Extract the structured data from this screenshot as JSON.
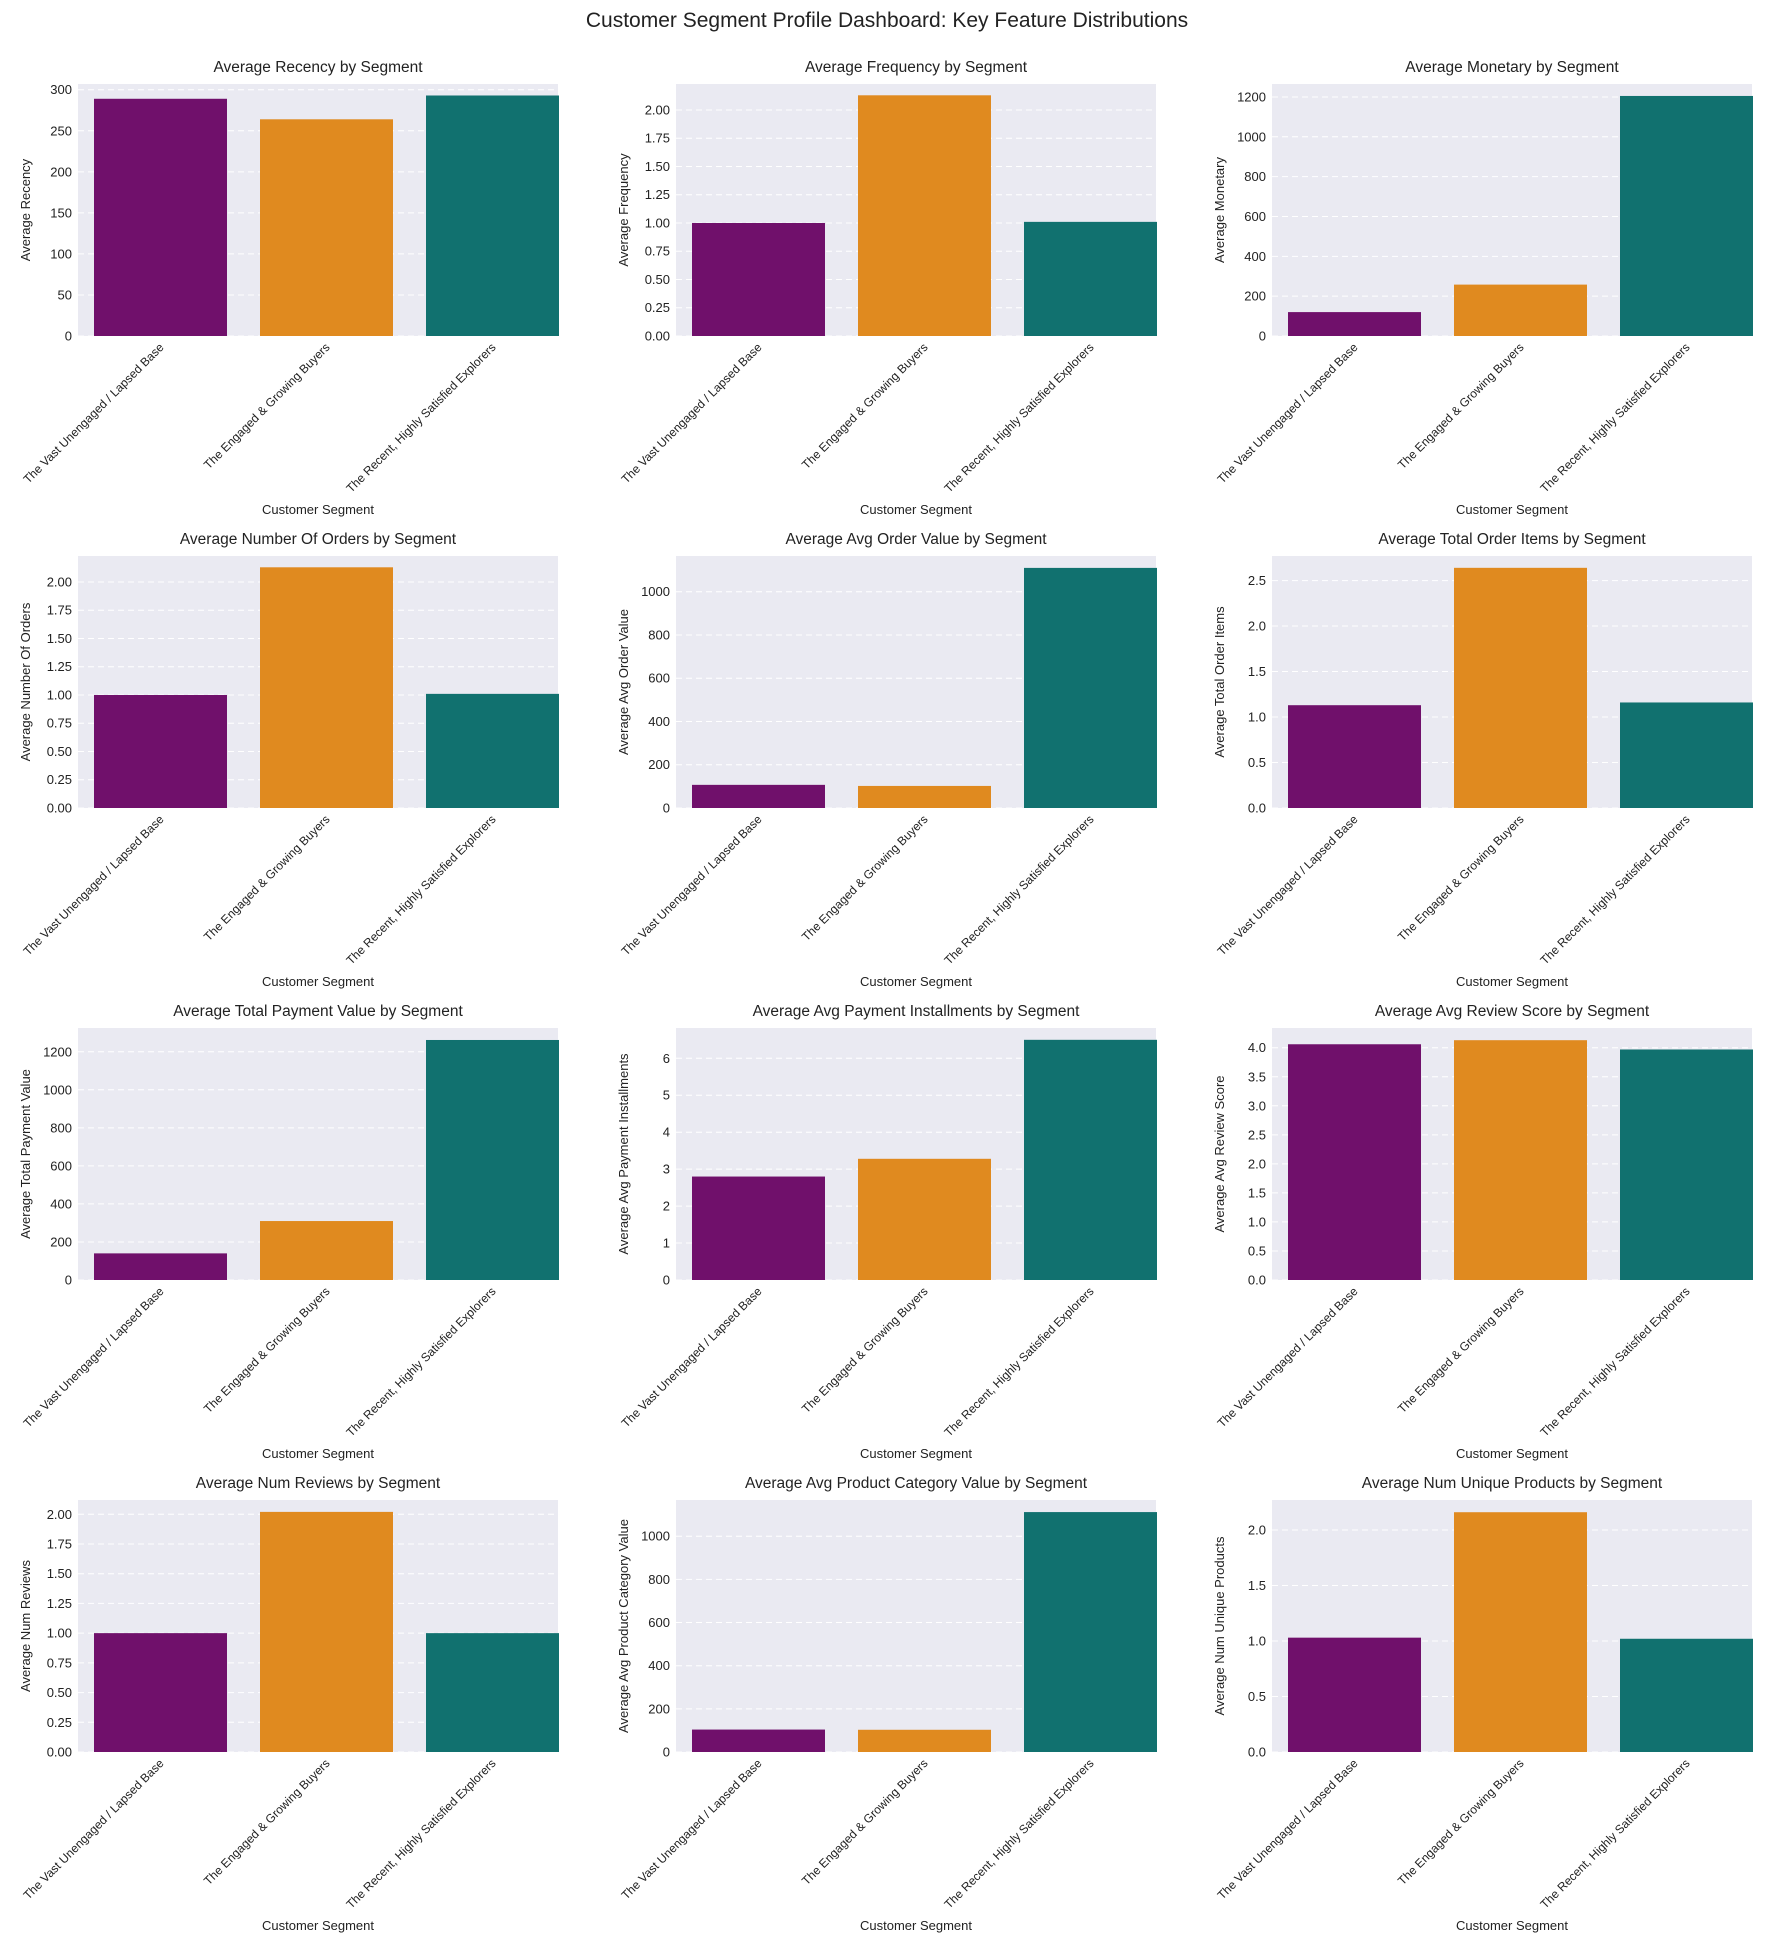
{
  "dashboard_title": "Customer Segment Profile Dashboard: Key Feature Distributions",
  "colors": {
    "panel_bg": "#EAEAF2",
    "grid": "#FFFFFF",
    "text": "#222222"
  },
  "chart_data": [
    {
      "type": "bar",
      "title": "Average Recency by Segment",
      "xlabel": "Customer Segment",
      "ylabel": "Average Recency",
      "categories": [
        "The Vast Unengaged / Lapsed Base",
        "The Engaged & Growing Buyers",
        "The Recent, Highly Satisfied Explorers"
      ],
      "values": [
        289,
        264,
        293
      ],
      "colors": [
        "#70106B",
        "#E08A1F",
        "#11716F"
      ],
      "ylim": [
        0,
        307
      ],
      "yticks": [
        0,
        50,
        100,
        150,
        200,
        250,
        300
      ],
      "ytick_labels": [
        "0",
        "50",
        "100",
        "150",
        "200",
        "250",
        "300"
      ]
    },
    {
      "type": "bar",
      "title": "Average Frequency by Segment",
      "xlabel": "Customer Segment",
      "ylabel": "Average Frequency",
      "categories": [
        "The Vast Unengaged / Lapsed Base",
        "The Engaged & Growing Buyers",
        "The Recent, Highly Satisfied Explorers"
      ],
      "values": [
        1.0,
        2.13,
        1.01
      ],
      "colors": [
        "#70106B",
        "#E08A1F",
        "#11716F"
      ],
      "ylim": [
        0,
        2.23
      ],
      "yticks": [
        0,
        0.25,
        0.5,
        0.75,
        1.0,
        1.25,
        1.5,
        1.75,
        2.0
      ],
      "ytick_labels": [
        "0.00",
        "0.25",
        "0.50",
        "0.75",
        "1.00",
        "1.25",
        "1.50",
        "1.75",
        "2.00"
      ]
    },
    {
      "type": "bar",
      "title": "Average Monetary by Segment",
      "xlabel": "Customer Segment",
      "ylabel": "Average Monetary",
      "categories": [
        "The Vast Unengaged / Lapsed Base",
        "The Engaged & Growing Buyers",
        "The Recent, Highly Satisfied Explorers"
      ],
      "values": [
        120,
        258,
        1205
      ],
      "colors": [
        "#70106B",
        "#E08A1F",
        "#11716F"
      ],
      "ylim": [
        0,
        1265
      ],
      "yticks": [
        0,
        200,
        400,
        600,
        800,
        1000,
        1200
      ],
      "ytick_labels": [
        "0",
        "200",
        "400",
        "600",
        "800",
        "1000",
        "1200"
      ]
    },
    {
      "type": "bar",
      "title": "Average Number Of Orders by Segment",
      "xlabel": "Customer Segment",
      "ylabel": "Average Number Of Orders",
      "categories": [
        "The Vast Unengaged / Lapsed Base",
        "The Engaged & Growing Buyers",
        "The Recent, Highly Satisfied Explorers"
      ],
      "values": [
        1.0,
        2.13,
        1.01
      ],
      "colors": [
        "#70106B",
        "#E08A1F",
        "#11716F"
      ],
      "ylim": [
        0,
        2.23
      ],
      "yticks": [
        0,
        0.25,
        0.5,
        0.75,
        1.0,
        1.25,
        1.5,
        1.75,
        2.0
      ],
      "ytick_labels": [
        "0.00",
        "0.25",
        "0.50",
        "0.75",
        "1.00",
        "1.25",
        "1.50",
        "1.75",
        "2.00"
      ]
    },
    {
      "type": "bar",
      "title": "Average Avg Order Value by Segment",
      "xlabel": "Customer Segment",
      "ylabel": "Average Avg Order Value",
      "categories": [
        "The Vast Unengaged / Lapsed Base",
        "The Engaged & Growing Buyers",
        "The Recent, Highly Satisfied Explorers"
      ],
      "values": [
        107,
        102,
        1110
      ],
      "colors": [
        "#70106B",
        "#E08A1F",
        "#11716F"
      ],
      "ylim": [
        0,
        1165
      ],
      "yticks": [
        0,
        200,
        400,
        600,
        800,
        1000
      ],
      "ytick_labels": [
        "0",
        "200",
        "400",
        "600",
        "800",
        "1000"
      ]
    },
    {
      "type": "bar",
      "title": "Average Total Order Items by Segment",
      "xlabel": "Customer Segment",
      "ylabel": "Average Total Order Items",
      "categories": [
        "The Vast Unengaged / Lapsed Base",
        "The Engaged & Growing Buyers",
        "The Recent, Highly Satisfied Explorers"
      ],
      "values": [
        1.13,
        2.64,
        1.16
      ],
      "colors": [
        "#70106B",
        "#E08A1F",
        "#11716F"
      ],
      "ylim": [
        0,
        2.77
      ],
      "yticks": [
        0,
        0.5,
        1.0,
        1.5,
        2.0,
        2.5
      ],
      "ytick_labels": [
        "0.0",
        "0.5",
        "1.0",
        "1.5",
        "2.0",
        "2.5"
      ]
    },
    {
      "type": "bar",
      "title": "Average Total Payment Value by Segment",
      "xlabel": "Customer Segment",
      "ylabel": "Average Total Payment Value",
      "categories": [
        "The Vast Unengaged / Lapsed Base",
        "The Engaged & Growing Buyers",
        "The Recent, Highly Satisfied Explorers"
      ],
      "values": [
        140,
        310,
        1262
      ],
      "colors": [
        "#70106B",
        "#E08A1F",
        "#11716F"
      ],
      "ylim": [
        0,
        1325
      ],
      "yticks": [
        0,
        200,
        400,
        600,
        800,
        1000,
        1200
      ],
      "ytick_labels": [
        "0",
        "200",
        "400",
        "600",
        "800",
        "1000",
        "1200"
      ]
    },
    {
      "type": "bar",
      "title": "Average Avg Payment Installments by Segment",
      "xlabel": "Customer Segment",
      "ylabel": "Average Avg Payment Installments",
      "categories": [
        "The Vast Unengaged / Lapsed Base",
        "The Engaged & Growing Buyers",
        "The Recent, Highly Satisfied Explorers"
      ],
      "values": [
        2.8,
        3.28,
        6.5
      ],
      "colors": [
        "#70106B",
        "#E08A1F",
        "#11716F"
      ],
      "ylim": [
        0,
        6.82
      ],
      "yticks": [
        0,
        1,
        2,
        3,
        4,
        5,
        6
      ],
      "ytick_labels": [
        "0",
        "1",
        "2",
        "3",
        "4",
        "5",
        "6"
      ]
    },
    {
      "type": "bar",
      "title": "Average Avg Review Score by Segment",
      "xlabel": "Customer Segment",
      "ylabel": "Average Avg Review Score",
      "categories": [
        "The Vast Unengaged / Lapsed Base",
        "The Engaged & Growing Buyers",
        "The Recent, Highly Satisfied Explorers"
      ],
      "values": [
        4.06,
        4.13,
        3.97
      ],
      "colors": [
        "#70106B",
        "#E08A1F",
        "#11716F"
      ],
      "ylim": [
        0,
        4.34
      ],
      "yticks": [
        0,
        0.5,
        1.0,
        1.5,
        2.0,
        2.5,
        3.0,
        3.5,
        4.0
      ],
      "ytick_labels": [
        "0.0",
        "0.5",
        "1.0",
        "1.5",
        "2.0",
        "2.5",
        "3.0",
        "3.5",
        "4.0"
      ]
    },
    {
      "type": "bar",
      "title": "Average Num Reviews by Segment",
      "xlabel": "Customer Segment",
      "ylabel": "Average Num Reviews",
      "categories": [
        "The Vast Unengaged / Lapsed Base",
        "The Engaged & Growing Buyers",
        "The Recent, Highly Satisfied Explorers"
      ],
      "values": [
        1.0,
        2.02,
        1.0
      ],
      "colors": [
        "#70106B",
        "#E08A1F",
        "#11716F"
      ],
      "ylim": [
        0,
        2.12
      ],
      "yticks": [
        0,
        0.25,
        0.5,
        0.75,
        1.0,
        1.25,
        1.5,
        1.75,
        2.0
      ],
      "ytick_labels": [
        "0.00",
        "0.25",
        "0.50",
        "0.75",
        "1.00",
        "1.25",
        "1.50",
        "1.75",
        "2.00"
      ]
    },
    {
      "type": "bar",
      "title": "Average Avg Product Category Value by Segment",
      "xlabel": "Customer Segment",
      "ylabel": "Average Avg Product Category Value",
      "categories": [
        "The Vast Unengaged / Lapsed Base",
        "The Engaged & Growing Buyers",
        "The Recent, Highly Satisfied Explorers"
      ],
      "values": [
        104,
        103,
        1112
      ],
      "colors": [
        "#70106B",
        "#E08A1F",
        "#11716F"
      ],
      "ylim": [
        0,
        1168
      ],
      "yticks": [
        0,
        200,
        400,
        600,
        800,
        1000
      ],
      "ytick_labels": [
        "0",
        "200",
        "400",
        "600",
        "800",
        "1000"
      ]
    },
    {
      "type": "bar",
      "title": "Average Num Unique Products by Segment",
      "xlabel": "Customer Segment",
      "ylabel": "Average Num Unique Products",
      "categories": [
        "The Vast Unengaged / Lapsed Base",
        "The Engaged & Growing Buyers",
        "The Recent, Highly Satisfied Explorers"
      ],
      "values": [
        1.03,
        2.16,
        1.02
      ],
      "colors": [
        "#70106B",
        "#E08A1F",
        "#11716F"
      ],
      "ylim": [
        0,
        2.27
      ],
      "yticks": [
        0,
        0.5,
        1.0,
        1.5,
        2.0
      ],
      "ytick_labels": [
        "0.0",
        "0.5",
        "1.0",
        "1.5",
        "2.0"
      ]
    }
  ]
}
